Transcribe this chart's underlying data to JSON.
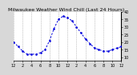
{
  "title": "Milwaukee Weather Wind Chill (Last 24 Hours)",
  "line_color": "#0000dd",
  "background_color": "#d8d8d8",
  "plot_bg_color": "#ffffff",
  "grid_color": "#999999",
  "x_values": [
    0,
    1,
    2,
    3,
    4,
    5,
    6,
    7,
    8,
    9,
    10,
    11,
    12,
    13,
    14,
    15,
    16,
    17,
    18,
    19,
    20,
    21,
    22,
    23,
    24
  ],
  "y_values": [
    20,
    17,
    14,
    12,
    12,
    12,
    13,
    15,
    21,
    29,
    35,
    37,
    36,
    34,
    30,
    26,
    22,
    19,
    16,
    15,
    14,
    14,
    15,
    16,
    17
  ],
  "ylim": [
    8,
    40
  ],
  "yticks": [
    10,
    15,
    20,
    25,
    30,
    35,
    40
  ],
  "ytick_labels": [
    "10",
    "15",
    "20",
    "25",
    "30",
    "35",
    "40"
  ],
  "title_fontsize": 4.5,
  "tick_fontsize": 3.5,
  "grid_xticks": [
    0,
    2,
    4,
    6,
    8,
    10,
    12,
    14,
    16,
    18,
    20,
    22,
    24
  ],
  "xtick_labels": [
    "12",
    "2",
    "4",
    "6",
    "8",
    "10",
    "12",
    "2",
    "4",
    "6",
    "8",
    "10",
    "12"
  ]
}
